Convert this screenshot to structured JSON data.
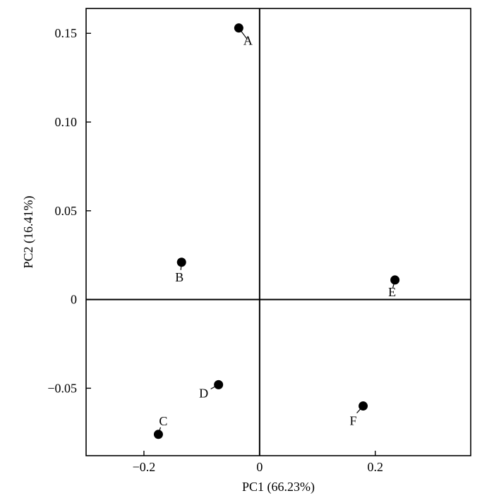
{
  "chart_data": {
    "type": "scatter",
    "title": "",
    "xlabel": "PC1 (66.23%)",
    "ylabel": "PC2 (16.41%)",
    "xlim": [
      -0.3,
      0.365
    ],
    "ylim": [
      -0.088,
      0.164
    ],
    "x_ticks": [
      {
        "value": -0.2,
        "label": "−0.2"
      },
      {
        "value": 0,
        "label": "0"
      },
      {
        "value": 0.2,
        "label": "0.2"
      }
    ],
    "y_ticks": [
      {
        "value": -0.05,
        "label": "−0.05"
      },
      {
        "value": 0,
        "label": "0"
      },
      {
        "value": 0.05,
        "label": "0.05"
      },
      {
        "value": 0.1,
        "label": "0.10"
      },
      {
        "value": 0.15,
        "label": "0.15"
      }
    ],
    "reference_lines": {
      "x": 0,
      "y": 0
    },
    "grid": false,
    "legend": "none",
    "marker_color": "#000000",
    "points": [
      {
        "label": "A",
        "x": -0.036,
        "y": 0.153
      },
      {
        "label": "B",
        "x": -0.135,
        "y": 0.021
      },
      {
        "label": "C",
        "x": -0.175,
        "y": -0.076
      },
      {
        "label": "D",
        "x": -0.071,
        "y": -0.048
      },
      {
        "label": "E",
        "x": 0.234,
        "y": 0.011
      },
      {
        "label": "F",
        "x": 0.179,
        "y": -0.06
      }
    ]
  }
}
